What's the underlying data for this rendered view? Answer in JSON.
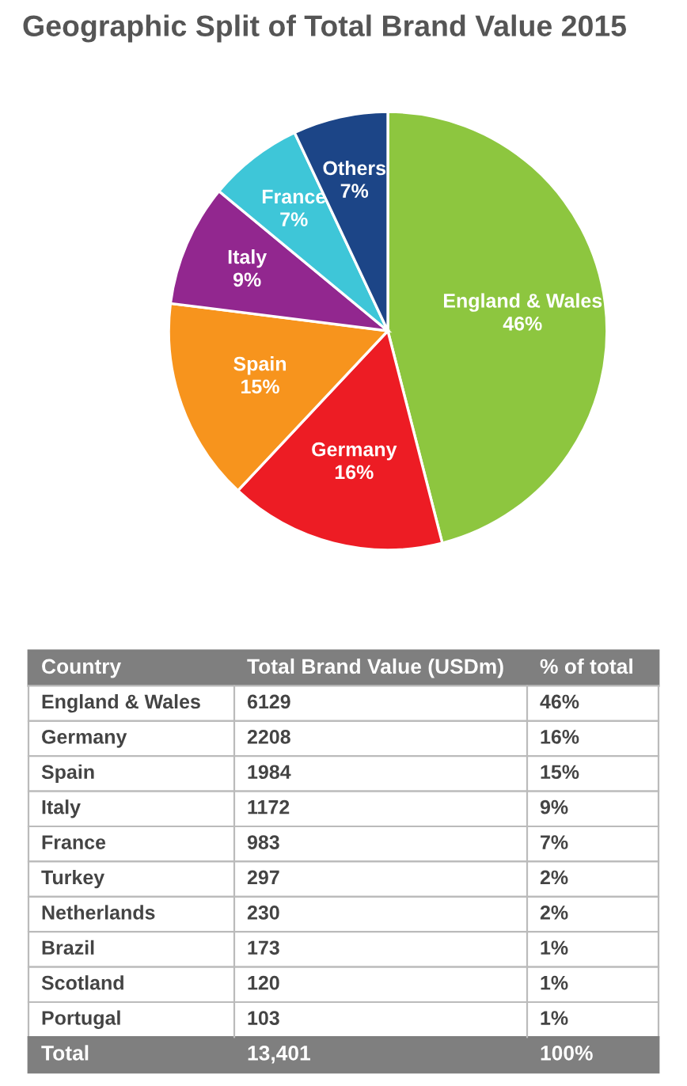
{
  "chart_data": [
    {
      "type": "pie",
      "title": "Geographic Split of Total Brand Value 2015",
      "categories": [
        "England & Wales",
        "Germany",
        "Spain",
        "Italy",
        "France",
        "Others"
      ],
      "values": [
        46,
        16,
        15,
        9,
        7,
        7
      ],
      "value_labels": [
        "46%",
        "16%",
        "15%",
        "9%",
        "7%",
        "7%"
      ],
      "colors": [
        "#8dc63f",
        "#ed1c24",
        "#f7941d",
        "#92278f",
        "#3ec6d8",
        "#1c4587"
      ]
    },
    {
      "type": "other",
      "xlabel": "Country",
      "categories": [
        "England & Wales",
        "Germany",
        "Spain",
        "Italy",
        "France",
        "Turkey",
        "Netherlands",
        "Brazil",
        "Scotland",
        "Portugal"
      ],
      "series": [
        {
          "name": "Total Brand Value (USDm)",
          "values": [
            6129,
            2208,
            1984,
            1172,
            983,
            297,
            230,
            173,
            120,
            103
          ]
        },
        {
          "name": "% of total",
          "values": [
            46,
            16,
            15,
            9,
            7,
            2,
            2,
            1,
            1,
            1
          ],
          "value_labels": [
            "46%",
            "16%",
            "15%",
            "9%",
            "7%",
            "2%",
            "2%",
            "1%",
            "1%",
            "1%"
          ]
        }
      ],
      "data_labels": true,
      "annotations": [
        "Total"
      ],
      "totals": [
        "13,401",
        "100%"
      ]
    }
  ]
}
